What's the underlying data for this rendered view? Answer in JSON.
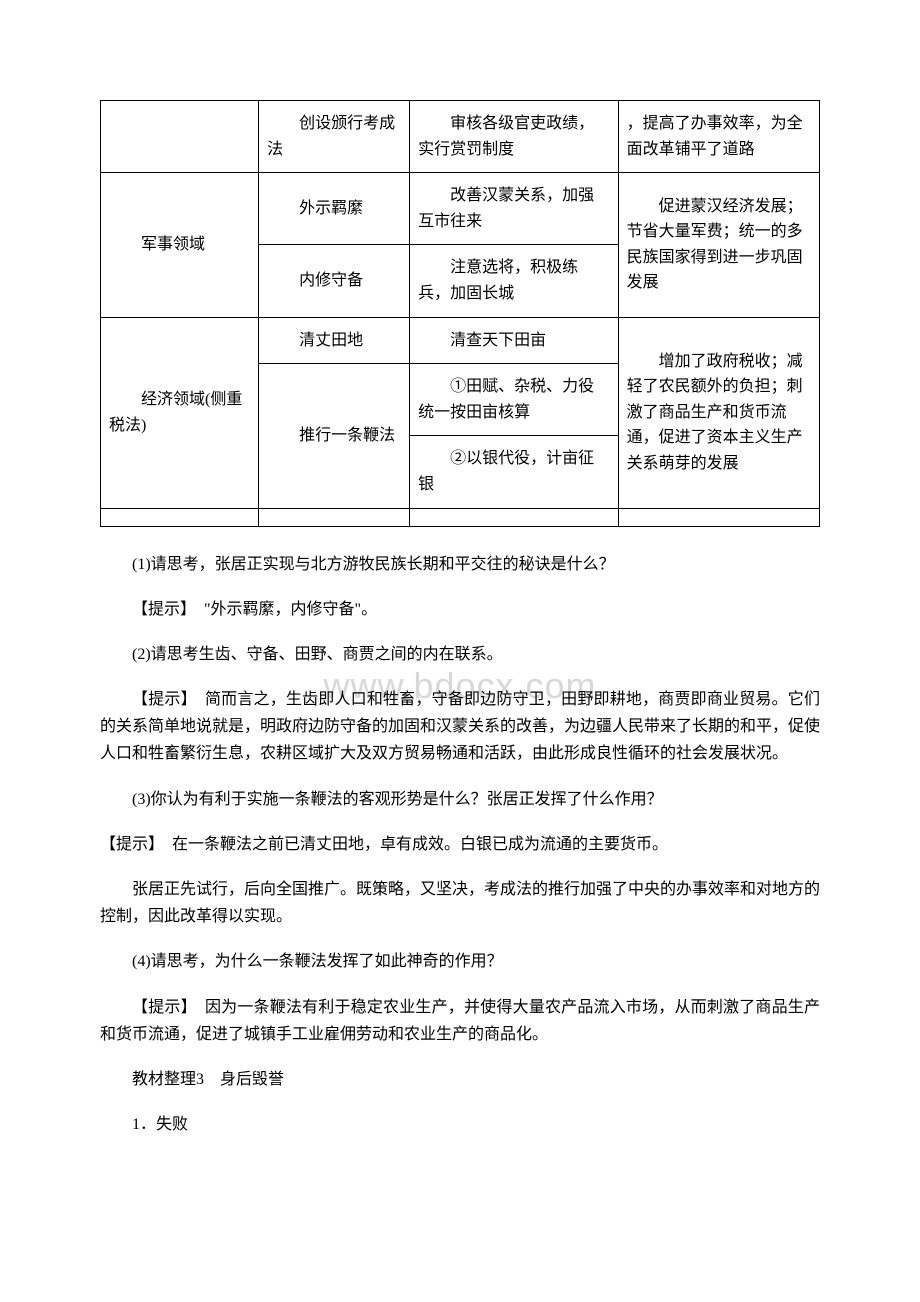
{
  "watermark": "www.bdocx.com",
  "table": {
    "row1": {
      "c2": "　　创设颁行考成法",
      "c3": "　　审核各级官吏政绩，实行赏罚制度",
      "c4": "，提高了办事效率，为全面改革铺平了道路"
    },
    "row2": {
      "c1": "　　军事领域",
      "c2a": "　　外示羁縻",
      "c3a": "　　改善汉蒙关系，加强互市往来",
      "c4": "　　促进蒙汉经济发展；节省大量军费；统一的多民族国家得到进一步巩固发展",
      "c2b": "　　内修守备",
      "c3b": "　　注意选将，积极练兵，加固长城"
    },
    "row3": {
      "c1": "　　经济领域(侧重税法)",
      "c2a": "　　清丈田地",
      "c3a": "　　清查天下田亩",
      "c4": "　　增加了政府税收；减轻了农民额外的负担；刺激了商品生产和货币流通，促进了资本主义生产关系萌芽的发展",
      "c2b": "　　推行一条鞭法",
      "c3b1": "　　①田赋、杂税、力役统一按田亩核算",
      "c3b2": "　　②以银代役，计亩征银"
    }
  },
  "paragraphs": {
    "q1": "(1)请思考，张居正实现与北方游牧民族长期和平交往的秘诀是什么？",
    "a1": "【提示】　\"外示羁縻，内修守备\"。",
    "q2": "(2)请思考生齿、守备、田野、商贾之间的内在联系。",
    "a2": "【提示】　简而言之，生齿即人口和牲畜，守备即边防守卫，田野即耕地，商贾即商业贸易。它们的关系简单地说就是，明政府边防守备的加固和汉蒙关系的改善，为边疆人民带来了长期的和平，促使人口和牲畜繁衍生息，农耕区域扩大及双方贸易畅通和活跃，由此形成良性循环的社会发展状况。",
    "q3": "(3)你认为有利于实施一条鞭法的客观形势是什么？张居正发挥了什么作用？",
    "a3_p1": "【提示】　在一条鞭法之前已清丈田地，卓有成效。白银已成为流通的主要货币。",
    "a3_p2": "张居正先试行，后向全国推广。既策略，又坚决，考成法的推行加强了中央的办事效率和对地方的控制，因此改革得以实现。",
    "q4": "(4)请思考，为什么一条鞭法发挥了如此神奇的作用？",
    "a4": "【提示】　因为一条鞭法有利于稳定农业生产，并使得大量农产品流入市场，从而刺激了商品生产和货币流通，促进了城镇手工业雇佣劳动和农业生产的商品化。",
    "section": "教材整理3　身后毁誉",
    "sub": "1．失败"
  }
}
